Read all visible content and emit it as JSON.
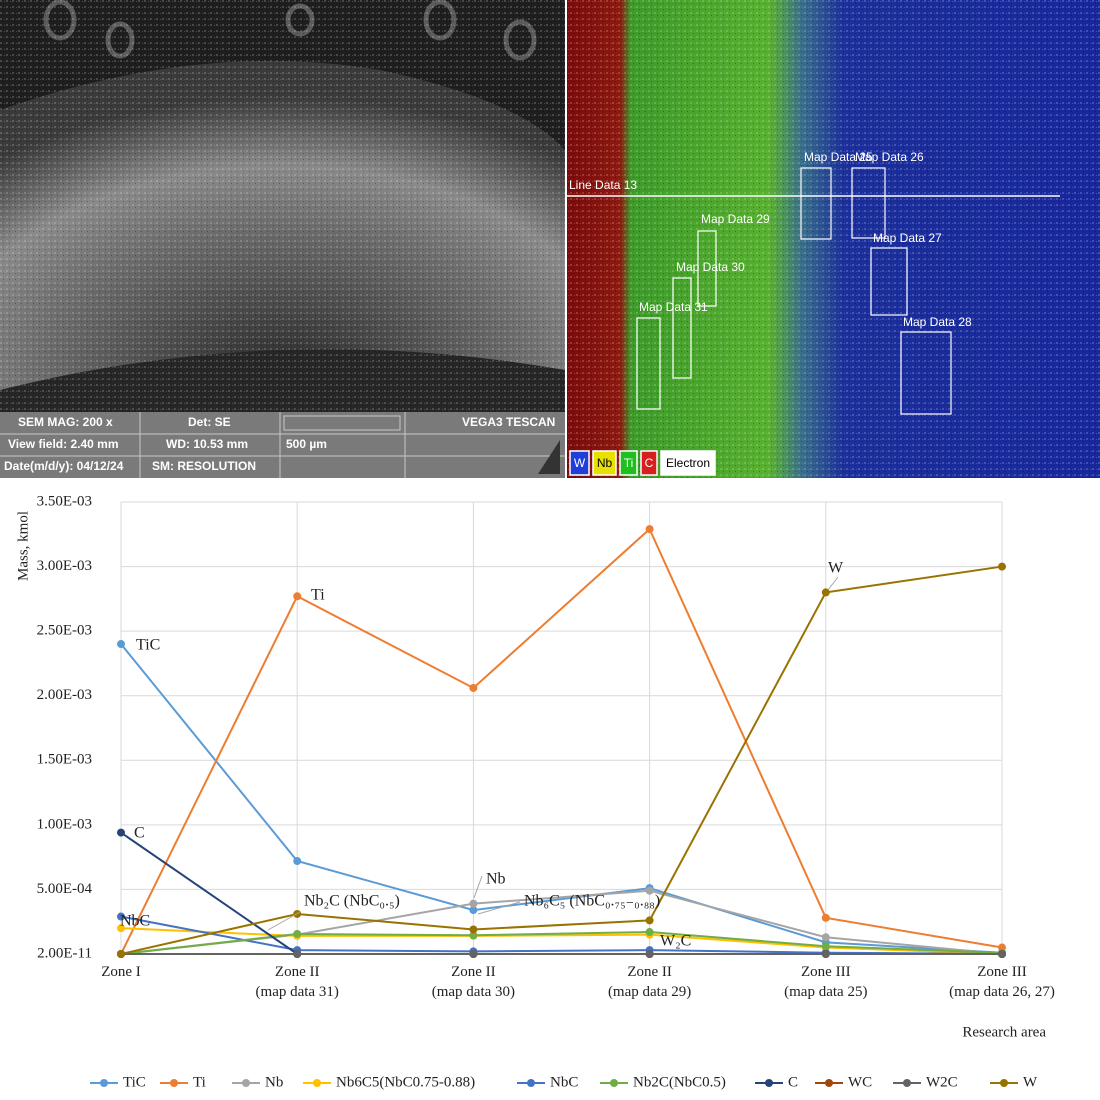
{
  "sem_panel": {
    "mag": "SEM MAG: 200 x",
    "det": "Det: SE",
    "brand": "VEGA3 TESCAN",
    "view_field": "View field: 2.40 mm",
    "wd": "WD: 10.53 mm",
    "scale": "500 µm",
    "date": "Date(m/d/y): 04/12/24",
    "mode": "SM: RESOLUTION"
  },
  "map_panel": {
    "line_label": "Line Data 13",
    "regions": [
      "Map Data 25",
      "Map Data 26",
      "Map Data 27",
      "Map Data 28",
      "Map Data 29",
      "Map Data 30",
      "Map Data 31"
    ],
    "legend": [
      {
        "label": "W",
        "color": "#1f3fd8"
      },
      {
        "label": "Nb",
        "color": "#e8e000"
      },
      {
        "label": "Ti",
        "color": "#1fbf1f"
      },
      {
        "label": "C",
        "color": "#d81f1f"
      },
      {
        "label": "Electron",
        "color": "#ffffff"
      }
    ]
  },
  "chart_data": {
    "type": "line",
    "y_label": "Mass, kmol",
    "x_label": "Research area",
    "categories": [
      "Zone I",
      "Zone II\n(map data 31)",
      "Zone II\n(map data 30)",
      "Zone II\n(map data 29)",
      "Zone III\n(map data 25)",
      "Zone III\n(map data 26, 27)"
    ],
    "ylim": [
      2e-11,
      0.0035
    ],
    "yticks": [
      {
        "value": 2e-11,
        "label": "2.00E-11"
      },
      {
        "value": 0.0005,
        "label": "5.00E-04"
      },
      {
        "value": 0.001,
        "label": "1.00E-03"
      },
      {
        "value": 0.0015,
        "label": "1.50E-03"
      },
      {
        "value": 0.002,
        "label": "2.00E-03"
      },
      {
        "value": 0.0025,
        "label": "2.50E-03"
      },
      {
        "value": 0.003,
        "label": "3.00E-03"
      },
      {
        "value": 0.0035,
        "label": "3.50E-03"
      }
    ],
    "grid": true,
    "series": [
      {
        "name": "TiC",
        "color": "#5b9bd5",
        "values": [
          0.0024,
          0.00072,
          0.00034,
          0.00051,
          9e-05,
          1e-05
        ]
      },
      {
        "name": "Ti",
        "color": "#ed7d31",
        "values": [
          0,
          0.00277,
          0.00206,
          0.00329,
          0.00028,
          5e-05
        ]
      },
      {
        "name": "Nb",
        "color": "#a5a5a5",
        "values": [
          0,
          0.00015,
          0.00039,
          0.00049,
          0.00013,
          0
        ]
      },
      {
        "name": "Nb6C5(NbC0.75-0.88)",
        "color": "#ffc000",
        "values": [
          0.0002,
          0.00014,
          0.00014,
          0.00015,
          5e-05,
          0
        ]
      },
      {
        "name": "NbC",
        "color": "#4472c4",
        "values": [
          0.00029,
          3e-05,
          2e-05,
          3e-05,
          1e-05,
          0
        ]
      },
      {
        "name": "Nb2C(NbC0.5)",
        "color": "#70ad47",
        "values": [
          0,
          0.000155,
          0.000145,
          0.00017,
          6e-05,
          1e-05
        ]
      },
      {
        "name": "C",
        "color": "#264478",
        "values": [
          0.00094,
          0,
          0,
          0,
          0,
          0
        ]
      },
      {
        "name": "WC",
        "color": "#9e480e",
        "values": [
          0,
          0,
          0,
          0,
          0,
          0
        ]
      },
      {
        "name": "W2C",
        "color": "#636363",
        "values": [
          0,
          0,
          0,
          0,
          0,
          0
        ]
      },
      {
        "name": "W",
        "color": "#997300",
        "values": [
          0,
          0.00031,
          0.00019,
          0.00026,
          0.0028,
          0.003
        ]
      }
    ],
    "annotations": [
      {
        "text": "TiC"
      },
      {
        "text": "Ti"
      },
      {
        "text": "C"
      },
      {
        "text": "NbC"
      },
      {
        "text": "Nb₂C (NbC₀.₅)"
      },
      {
        "text": "Nb"
      },
      {
        "text": "Nb₆C₅ (NbC₀.₇₅₋₀.₈₈)"
      },
      {
        "text": "W₂C"
      },
      {
        "text": "W"
      }
    ]
  }
}
